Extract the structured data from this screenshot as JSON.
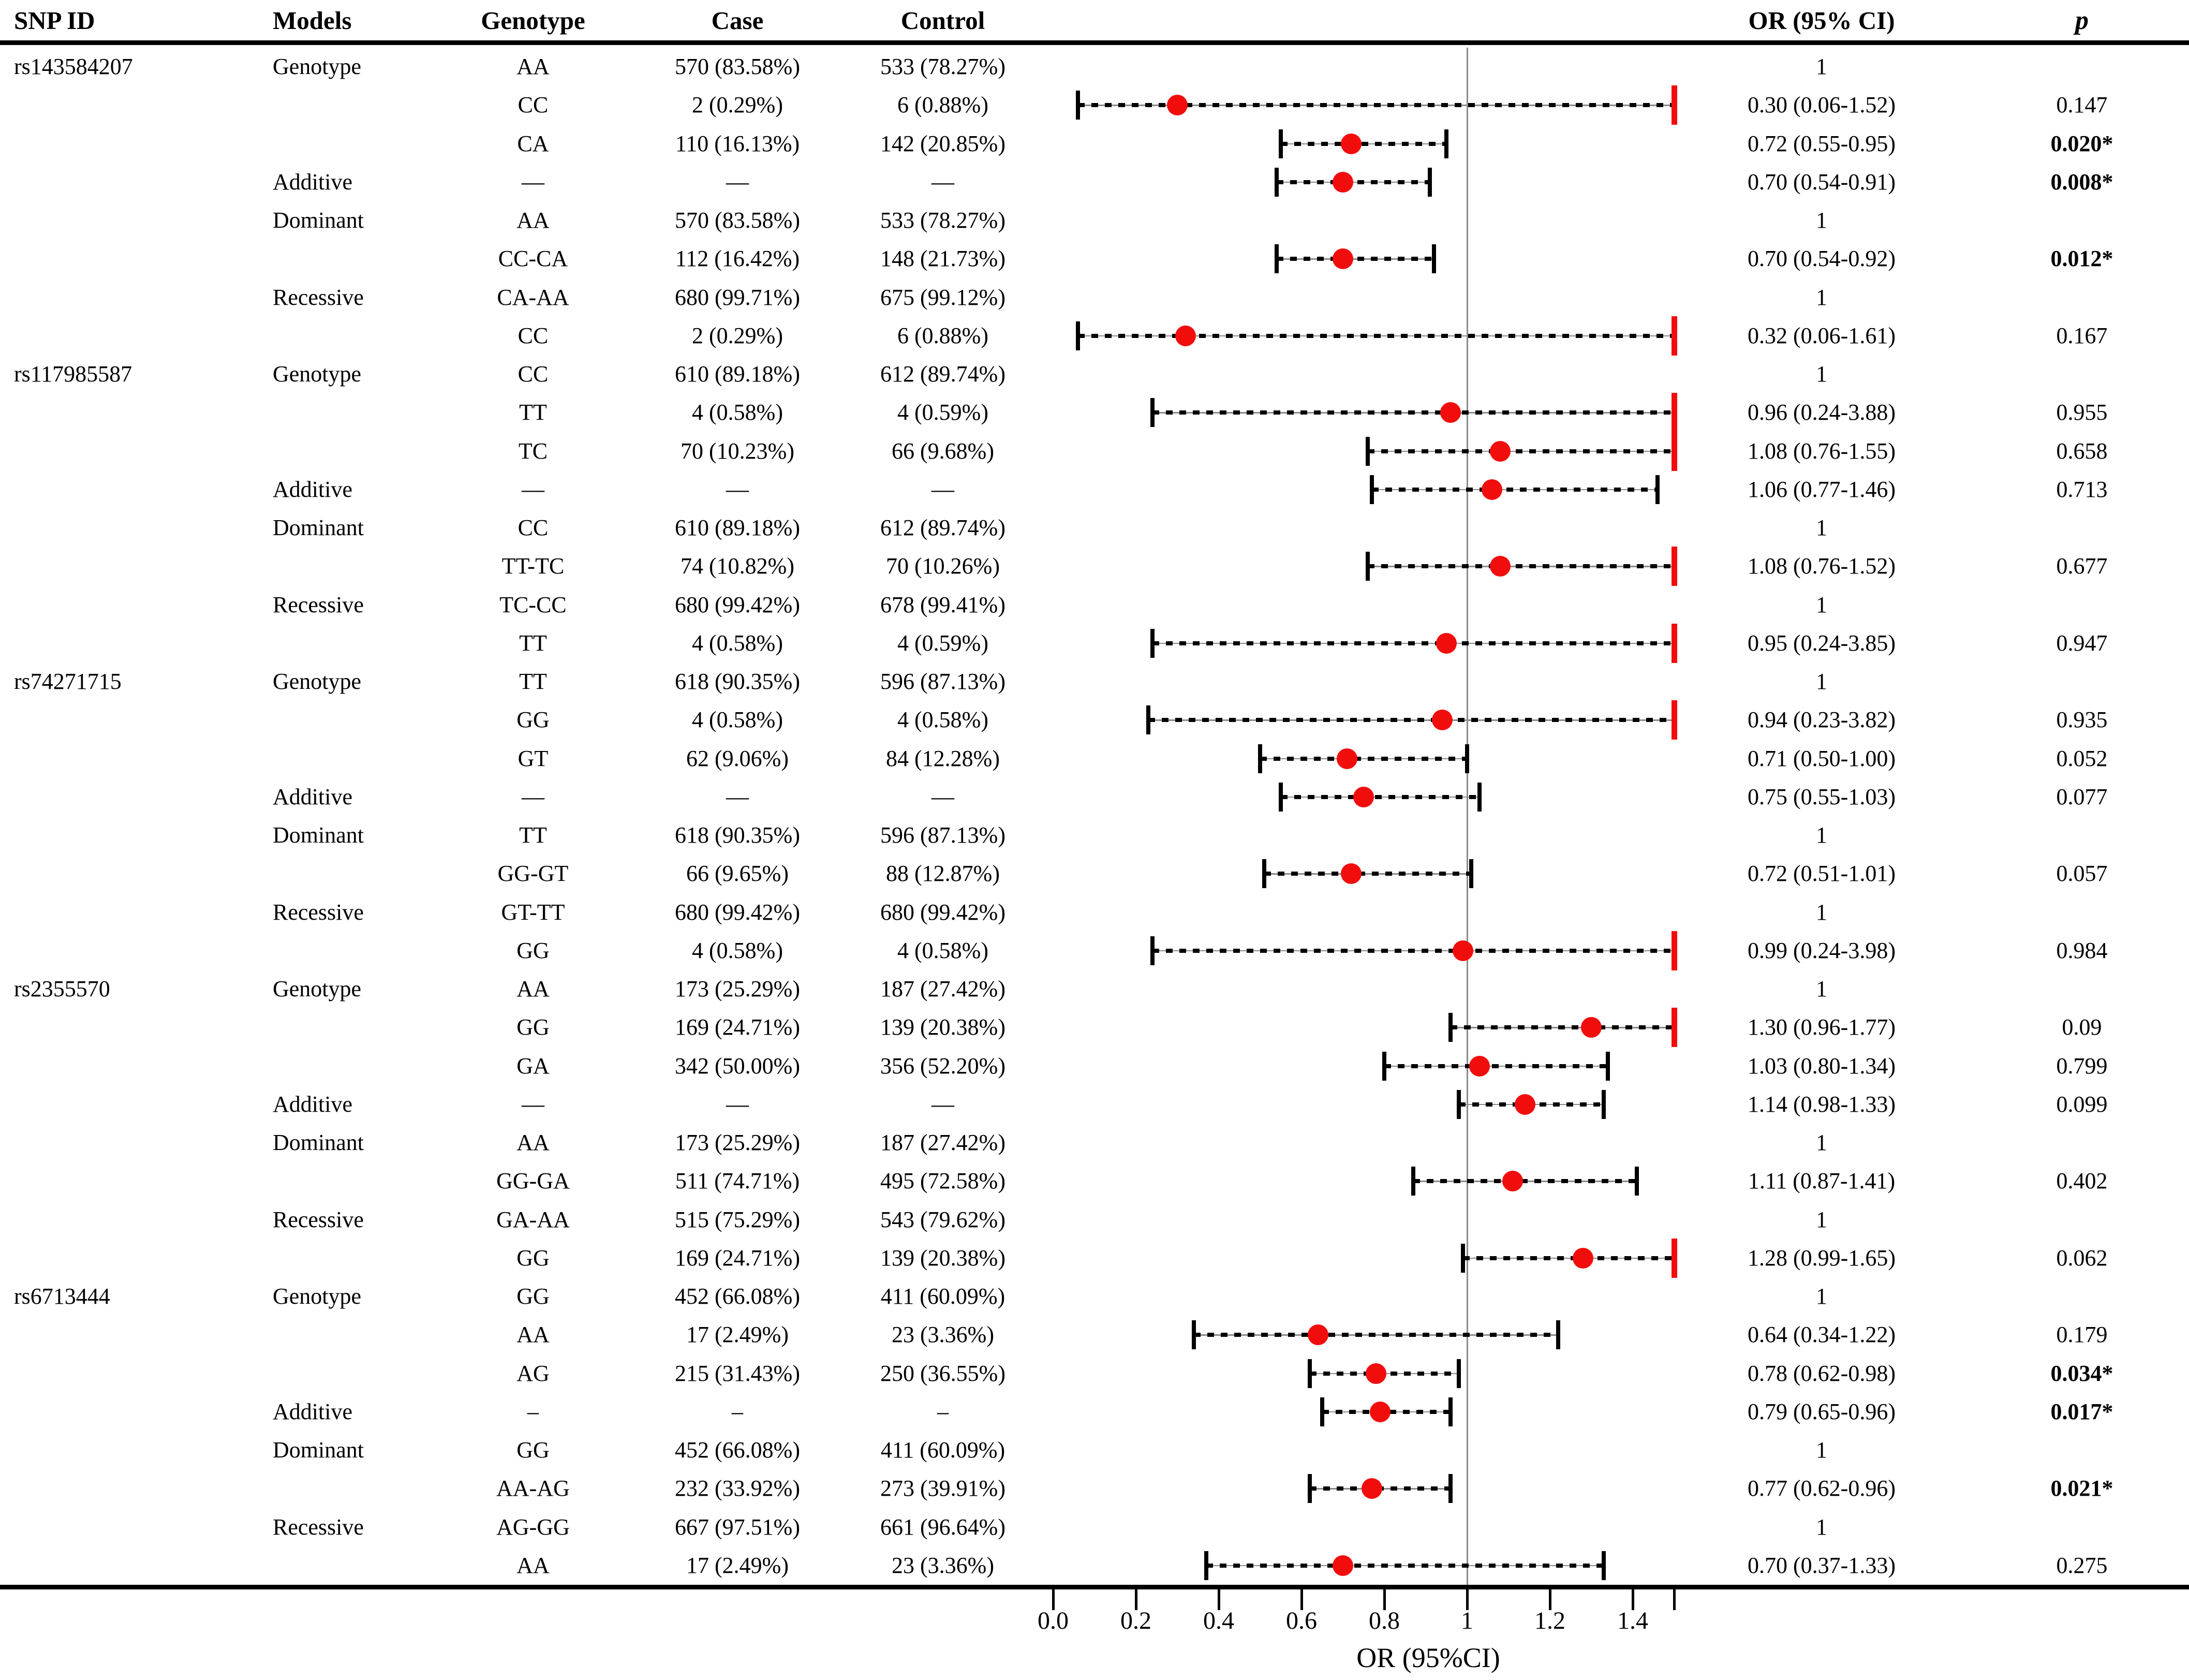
{
  "header": {
    "snp_id": "SNP ID",
    "models": "Models",
    "genotype": "Genotype",
    "case": "Case",
    "control": "Control",
    "or_ci": "OR (95% CI)",
    "p": "p"
  },
  "colors": {
    "marker_red": "#f20d0d",
    "clip_cap_red": "#f20d0d",
    "ci_line_gray": "#8a8a8a",
    "ref_line_gray": "#8a8a8a",
    "dash_black": "#000000"
  },
  "chart_data": {
    "type": "forest",
    "xlabel": "OR (95%CI)",
    "x_ticks": [
      "0.0",
      "0.2",
      "0.4",
      "0.6",
      "0.8",
      "1",
      "1.2",
      "1.4"
    ],
    "x_tick_values": [
      0,
      0.2,
      0.4,
      0.6,
      0.8,
      1,
      1.2,
      1.4
    ],
    "extra_unlabeled_ticks": [
      1.5
    ],
    "xlim": [
      0,
      1.5
    ],
    "ref_line": 1,
    "clip_note": "upper CI bounds beyond 1.5 are clipped and drawn with a red end cap",
    "rows": [
      {
        "snp": "rs143584207",
        "model": "Genotype",
        "genotype": "AA",
        "case": "570 (83.58%)",
        "control": "533 (78.27%)",
        "or": "1",
        "p": "",
        "sig": false,
        "est": null,
        "lo": null,
        "hi": null
      },
      {
        "snp": "",
        "model": "",
        "genotype": "CC",
        "case": "2 (0.29%)",
        "control": "6 (0.88%)",
        "or": "0.30 (0.06-1.52)",
        "p": "0.147",
        "sig": false,
        "est": 0.3,
        "lo": 0.06,
        "hi": 1.52
      },
      {
        "snp": "",
        "model": "",
        "genotype": "CA",
        "case": "110 (16.13%)",
        "control": "142 (20.85%)",
        "or": "0.72 (0.55-0.95)",
        "p": "0.020*",
        "sig": true,
        "est": 0.72,
        "lo": 0.55,
        "hi": 0.95
      },
      {
        "snp": "",
        "model": "Additive",
        "genotype": "—",
        "case": "—",
        "control": "—",
        "or": "0.70 (0.54-0.91)",
        "p": "0.008*",
        "sig": true,
        "est": 0.7,
        "lo": 0.54,
        "hi": 0.91
      },
      {
        "snp": "",
        "model": "Dominant",
        "genotype": "AA",
        "case": "570 (83.58%)",
        "control": "533 (78.27%)",
        "or": "1",
        "p": "",
        "sig": false,
        "est": null,
        "lo": null,
        "hi": null
      },
      {
        "snp": "",
        "model": "",
        "genotype": "CC-CA",
        "case": "112 (16.42%)",
        "control": "148 (21.73%)",
        "or": "0.70 (0.54-0.92)",
        "p": "0.012*",
        "sig": true,
        "est": 0.7,
        "lo": 0.54,
        "hi": 0.92
      },
      {
        "snp": "",
        "model": "Recessive",
        "genotype": "CA-AA",
        "case": "680 (99.71%)",
        "control": "675 (99.12%)",
        "or": "1",
        "p": "",
        "sig": false,
        "est": null,
        "lo": null,
        "hi": null
      },
      {
        "snp": "",
        "model": "",
        "genotype": "CC",
        "case": "2 (0.29%)",
        "control": "6 (0.88%)",
        "or": "0.32 (0.06-1.61)",
        "p": "0.167",
        "sig": false,
        "est": 0.32,
        "lo": 0.06,
        "hi": 1.61
      },
      {
        "snp": "rs117985587",
        "model": "Genotype",
        "genotype": "CC",
        "case": "610 (89.18%)",
        "control": "612 (89.74%)",
        "or": "1",
        "p": "",
        "sig": false,
        "est": null,
        "lo": null,
        "hi": null
      },
      {
        "snp": "",
        "model": "",
        "genotype": "TT",
        "case": "4 (0.58%)",
        "control": "4 (0.59%)",
        "or": "0.96 (0.24-3.88)",
        "p": "0.955",
        "sig": false,
        "est": 0.96,
        "lo": 0.24,
        "hi": 3.88
      },
      {
        "snp": "",
        "model": "",
        "genotype": "TC",
        "case": "70 (10.23%)",
        "control": "66 (9.68%)",
        "or": "1.08 (0.76-1.55)",
        "p": "0.658",
        "sig": false,
        "est": 1.08,
        "lo": 0.76,
        "hi": 1.55
      },
      {
        "snp": "",
        "model": "Additive",
        "genotype": "—",
        "case": "—",
        "control": "—",
        "or": "1.06 (0.77-1.46)",
        "p": "0.713",
        "sig": false,
        "est": 1.06,
        "lo": 0.77,
        "hi": 1.46
      },
      {
        "snp": "",
        "model": "Dominant",
        "genotype": "CC",
        "case": "610 (89.18%)",
        "control": "612 (89.74%)",
        "or": "1",
        "p": "",
        "sig": false,
        "est": null,
        "lo": null,
        "hi": null
      },
      {
        "snp": "",
        "model": "",
        "genotype": "TT-TC",
        "case": "74 (10.82%)",
        "control": "70 (10.26%)",
        "or": "1.08 (0.76-1.52)",
        "p": "0.677",
        "sig": false,
        "est": 1.08,
        "lo": 0.76,
        "hi": 1.52
      },
      {
        "snp": "",
        "model": "Recessive",
        "genotype": "TC-CC",
        "case": "680 (99.42%)",
        "control": "678 (99.41%)",
        "or": "1",
        "p": "",
        "sig": false,
        "est": null,
        "lo": null,
        "hi": null
      },
      {
        "snp": "",
        "model": "",
        "genotype": "TT",
        "case": "4 (0.58%)",
        "control": "4 (0.59%)",
        "or": "0.95 (0.24-3.85)",
        "p": "0.947",
        "sig": false,
        "est": 0.95,
        "lo": 0.24,
        "hi": 3.85
      },
      {
        "snp": "rs74271715",
        "model": "Genotype",
        "genotype": "TT",
        "case": "618 (90.35%)",
        "control": "596 (87.13%)",
        "or": "1",
        "p": "",
        "sig": false,
        "est": null,
        "lo": null,
        "hi": null
      },
      {
        "snp": "",
        "model": "",
        "genotype": "GG",
        "case": "4 (0.58%)",
        "control": "4 (0.58%)",
        "or": "0.94 (0.23-3.82)",
        "p": "0.935",
        "sig": false,
        "est": 0.94,
        "lo": 0.23,
        "hi": 3.82
      },
      {
        "snp": "",
        "model": "",
        "genotype": "GT",
        "case": "62 (9.06%)",
        "control": "84 (12.28%)",
        "or": "0.71 (0.50-1.00)",
        "p": "0.052",
        "sig": false,
        "est": 0.71,
        "lo": 0.5,
        "hi": 1.0
      },
      {
        "snp": "",
        "model": "Additive",
        "genotype": "—",
        "case": "—",
        "control": "—",
        "or": "0.75 (0.55-1.03)",
        "p": "0.077",
        "sig": false,
        "est": 0.75,
        "lo": 0.55,
        "hi": 1.03
      },
      {
        "snp": "",
        "model": "Dominant",
        "genotype": "TT",
        "case": "618 (90.35%)",
        "control": "596 (87.13%)",
        "or": "1",
        "p": "",
        "sig": false,
        "est": null,
        "lo": null,
        "hi": null
      },
      {
        "snp": "",
        "model": "",
        "genotype": "GG-GT",
        "case": "66 (9.65%)",
        "control": "88 (12.87%)",
        "or": "0.72 (0.51-1.01)",
        "p": "0.057",
        "sig": false,
        "est": 0.72,
        "lo": 0.51,
        "hi": 1.01
      },
      {
        "snp": "",
        "model": "Recessive",
        "genotype": "GT-TT",
        "case": "680 (99.42%)",
        "control": "680 (99.42%)",
        "or": "1",
        "p": "",
        "sig": false,
        "est": null,
        "lo": null,
        "hi": null
      },
      {
        "snp": "",
        "model": "",
        "genotype": "GG",
        "case": "4 (0.58%)",
        "control": "4 (0.58%)",
        "or": "0.99 (0.24-3.98)",
        "p": "0.984",
        "sig": false,
        "est": 0.99,
        "lo": 0.24,
        "hi": 3.98
      },
      {
        "snp": "rs2355570",
        "model": "Genotype",
        "genotype": "AA",
        "case": "173 (25.29%)",
        "control": "187 (27.42%)",
        "or": "1",
        "p": "",
        "sig": false,
        "est": null,
        "lo": null,
        "hi": null
      },
      {
        "snp": "",
        "model": "",
        "genotype": "GG",
        "case": "169 (24.71%)",
        "control": "139 (20.38%)",
        "or": "1.30 (0.96-1.77)",
        "p": "0.09",
        "sig": false,
        "est": 1.3,
        "lo": 0.96,
        "hi": 1.77
      },
      {
        "snp": "",
        "model": "",
        "genotype": "GA",
        "case": "342 (50.00%)",
        "control": "356 (52.20%)",
        "or": "1.03 (0.80-1.34)",
        "p": "0.799",
        "sig": false,
        "est": 1.03,
        "lo": 0.8,
        "hi": 1.34
      },
      {
        "snp": "",
        "model": "Additive",
        "genotype": "—",
        "case": "—",
        "control": "—",
        "or": "1.14 (0.98-1.33)",
        "p": "0.099",
        "sig": false,
        "est": 1.14,
        "lo": 0.98,
        "hi": 1.33
      },
      {
        "snp": "",
        "model": "Dominant",
        "genotype": "AA",
        "case": "173 (25.29%)",
        "control": "187 (27.42%)",
        "or": "1",
        "p": "",
        "sig": false,
        "est": null,
        "lo": null,
        "hi": null
      },
      {
        "snp": "",
        "model": "",
        "genotype": "GG-GA",
        "case": "511 (74.71%)",
        "control": "495 (72.58%)",
        "or": "1.11 (0.87-1.41)",
        "p": "0.402",
        "sig": false,
        "est": 1.11,
        "lo": 0.87,
        "hi": 1.41
      },
      {
        "snp": "",
        "model": "Recessive",
        "genotype": "GA-AA",
        "case": "515 (75.29%)",
        "control": "543 (79.62%)",
        "or": "1",
        "p": "",
        "sig": false,
        "est": null,
        "lo": null,
        "hi": null
      },
      {
        "snp": "",
        "model": "",
        "genotype": "GG",
        "case": "169 (24.71%)",
        "control": "139 (20.38%)",
        "or": "1.28 (0.99-1.65)",
        "p": "0.062",
        "sig": false,
        "est": 1.28,
        "lo": 0.99,
        "hi": 1.65
      },
      {
        "snp": "rs6713444",
        "model": "Genotype",
        "genotype": "GG",
        "case": "452 (66.08%)",
        "control": "411 (60.09%)",
        "or": "1",
        "p": "",
        "sig": false,
        "est": null,
        "lo": null,
        "hi": null
      },
      {
        "snp": "",
        "model": "",
        "genotype": "AA",
        "case": "17 (2.49%)",
        "control": "23 (3.36%)",
        "or": "0.64 (0.34-1.22)",
        "p": "0.179",
        "sig": false,
        "est": 0.64,
        "lo": 0.34,
        "hi": 1.22
      },
      {
        "snp": "",
        "model": "",
        "genotype": "AG",
        "case": "215 (31.43%)",
        "control": "250 (36.55%)",
        "or": "0.78 (0.62-0.98)",
        "p": "0.034*",
        "sig": true,
        "est": 0.78,
        "lo": 0.62,
        "hi": 0.98
      },
      {
        "snp": "",
        "model": "Additive",
        "genotype": "–",
        "case": "–",
        "control": "–",
        "or": "0.79 (0.65-0.96)",
        "p": "0.017*",
        "sig": true,
        "est": 0.79,
        "lo": 0.65,
        "hi": 0.96
      },
      {
        "snp": "",
        "model": "Dominant",
        "genotype": "GG",
        "case": "452 (66.08%)",
        "control": "411 (60.09%)",
        "or": "1",
        "p": "",
        "sig": false,
        "est": null,
        "lo": null,
        "hi": null
      },
      {
        "snp": "",
        "model": "",
        "genotype": "AA-AG",
        "case": "232 (33.92%)",
        "control": "273 (39.91%)",
        "or": "0.77 (0.62-0.96)",
        "p": "0.021*",
        "sig": true,
        "est": 0.77,
        "lo": 0.62,
        "hi": 0.96
      },
      {
        "snp": "",
        "model": "Recessive",
        "genotype": "AG-GG",
        "case": "667 (97.51%)",
        "control": "661 (96.64%)",
        "or": "1",
        "p": "",
        "sig": false,
        "est": null,
        "lo": null,
        "hi": null
      },
      {
        "snp": "",
        "model": "",
        "genotype": "AA",
        "case": "17 (2.49%)",
        "control": "23 (3.36%)",
        "or": "0.70 (0.37-1.33)",
        "p": "0.275",
        "sig": false,
        "est": 0.7,
        "lo": 0.37,
        "hi": 1.33
      }
    ]
  }
}
